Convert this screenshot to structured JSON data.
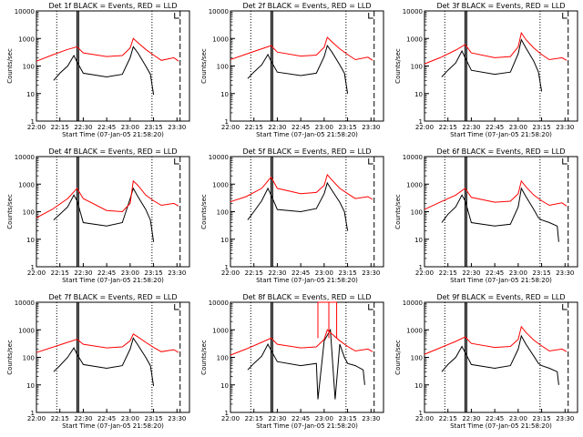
{
  "chart_data": [
    {
      "type": "line",
      "title": "Det 1f BLACK = Events, RED = LLD",
      "xlabel": "Start Time (07-Jan-05 21:58:20)",
      "ylabel": "Counts/sec",
      "yscale": "log",
      "ylim": [
        1,
        10000
      ],
      "y_ticks": [
        "1",
        "10",
        "100",
        "1000",
        "10000"
      ],
      "x_ticks": [
        "22:00",
        "22:15",
        "22:30",
        "22:45",
        "23:00",
        "23:15",
        "23:30"
      ],
      "colors": {
        "events": "#000000",
        "lld": "#ff0000"
      },
      "markers": {
        "dotted": [
          "22:13",
          "23:14"
        ],
        "solid": [
          "22:26",
          "22:27"
        ],
        "dashed": [
          "23:32"
        ]
      },
      "spike": false,
      "series": [
        {
          "name": "Events",
          "x": [
            "22:11",
            "22:15",
            "22:20",
            "22:24",
            "22:26",
            "22:30",
            "22:45",
            "22:55",
            "23:00",
            "23:02",
            "23:05",
            "23:10",
            "23:13",
            "23:15"
          ],
          "values": [
            30,
            55,
            100,
            240,
            140,
            55,
            40,
            50,
            200,
            500,
            300,
            100,
            50,
            9
          ]
        },
        {
          "name": "LLD",
          "x": [
            "22:00",
            "22:10",
            "22:20",
            "22:26",
            "22:30",
            "22:45",
            "22:55",
            "23:00",
            "23:02",
            "23:05",
            "23:10",
            "23:15",
            "23:20",
            "23:28",
            "23:31"
          ],
          "values": [
            150,
            250,
            400,
            500,
            300,
            220,
            240,
            450,
            1000,
            700,
            400,
            250,
            160,
            200,
            150
          ]
        }
      ]
    },
    {
      "type": "line",
      "title": "Det 2f BLACK = Events, RED = LLD",
      "xlabel": "Start Time (07-Jan-05 21:58:20)",
      "ylabel": "Counts/sec",
      "yscale": "log",
      "ylim": [
        1,
        10000
      ],
      "y_ticks": [
        "1",
        "10",
        "100",
        "1000",
        "10000"
      ],
      "x_ticks": [
        "22:00",
        "22:15",
        "22:30",
        "22:45",
        "23:00",
        "23:15",
        "23:30"
      ],
      "colors": {
        "events": "#000000",
        "lld": "#ff0000"
      },
      "markers": {
        "dotted": [
          "22:13",
          "23:14"
        ],
        "solid": [
          "22:26",
          "22:27"
        ],
        "dashed": [
          "23:32"
        ]
      },
      "spike": false,
      "series": [
        {
          "name": "Events",
          "x": [
            "22:11",
            "22:15",
            "22:20",
            "22:24",
            "22:26",
            "22:30",
            "22:45",
            "22:55",
            "23:00",
            "23:02",
            "23:05",
            "23:10",
            "23:13",
            "23:15"
          ],
          "values": [
            35,
            60,
            110,
            260,
            150,
            60,
            45,
            55,
            220,
            550,
            320,
            110,
            55,
            10
          ]
        },
        {
          "name": "LLD",
          "x": [
            "22:00",
            "22:10",
            "22:20",
            "22:26",
            "22:30",
            "22:45",
            "22:55",
            "23:00",
            "23:02",
            "23:05",
            "23:10",
            "23:15",
            "23:20",
            "23:28",
            "23:31"
          ],
          "values": [
            170,
            270,
            420,
            550,
            320,
            230,
            250,
            480,
            1100,
            750,
            420,
            260,
            170,
            210,
            160
          ]
        }
      ]
    },
    {
      "type": "line",
      "title": "Det 3f BLACK = Events, RED = LLD",
      "xlabel": "Start Time (07-Jan-05 21:58:20)",
      "ylabel": "Counts/sec",
      "yscale": "log",
      "ylim": [
        1,
        10000
      ],
      "y_ticks": [
        "1",
        "10",
        "100",
        "1000",
        "10000"
      ],
      "x_ticks": [
        "22:00",
        "22:15",
        "22:30",
        "22:45",
        "23:00",
        "23:15",
        "23:30"
      ],
      "colors": {
        "events": "#000000",
        "lld": "#ff0000"
      },
      "markers": {
        "dotted": [
          "22:13",
          "23:14"
        ],
        "solid": [
          "22:26",
          "22:27"
        ],
        "dashed": [
          "23:32"
        ]
      },
      "spike": false,
      "series": [
        {
          "name": "Events",
          "x": [
            "22:11",
            "22:15",
            "22:20",
            "22:24",
            "22:26",
            "22:30",
            "22:45",
            "22:55",
            "23:00",
            "23:02",
            "23:05",
            "23:10",
            "23:13",
            "23:15"
          ],
          "values": [
            40,
            70,
            130,
            350,
            200,
            70,
            50,
            60,
            280,
            900,
            450,
            150,
            60,
            12
          ]
        },
        {
          "name": "LLD",
          "x": [
            "22:00",
            "22:10",
            "22:20",
            "22:26",
            "22:30",
            "22:45",
            "22:55",
            "23:00",
            "23:02",
            "23:05",
            "23:10",
            "23:15",
            "23:20",
            "23:28",
            "23:31"
          ],
          "values": [
            120,
            200,
            380,
            600,
            300,
            200,
            220,
            500,
            1600,
            900,
            450,
            260,
            170,
            200,
            160
          ]
        }
      ]
    },
    {
      "type": "line",
      "title": "Det 4f BLACK = Events, RED = LLD",
      "xlabel": "Start Time (07-Jan-05 21:58:20)",
      "ylabel": "Counts/sec",
      "yscale": "log",
      "ylim": [
        1,
        10000
      ],
      "y_ticks": [
        "1",
        "10",
        "100",
        "1000",
        "10000"
      ],
      "x_ticks": [
        "22:00",
        "22:15",
        "22:30",
        "22:45",
        "23:00",
        "23:15",
        "23:30"
      ],
      "colors": {
        "events": "#000000",
        "lld": "#ff0000"
      },
      "markers": {
        "dotted": [
          "22:13",
          "23:14"
        ],
        "solid": [
          "22:26",
          "22:27"
        ],
        "dashed": [
          "23:32"
        ]
      },
      "spike": false,
      "series": [
        {
          "name": "Events",
          "x": [
            "22:11",
            "22:15",
            "22:20",
            "22:24",
            "22:26",
            "22:30",
            "22:45",
            "22:55",
            "23:00",
            "23:02",
            "23:05",
            "23:10",
            "23:13",
            "23:15"
          ],
          "values": [
            50,
            80,
            150,
            400,
            250,
            40,
            30,
            40,
            300,
            700,
            350,
            120,
            50,
            8
          ]
        },
        {
          "name": "LLD",
          "x": [
            "22:00",
            "22:10",
            "22:20",
            "22:26",
            "22:30",
            "22:45",
            "22:55",
            "23:00",
            "23:02",
            "23:05",
            "23:10",
            "23:15",
            "23:20",
            "23:28",
            "23:31"
          ],
          "values": [
            60,
            120,
            300,
            700,
            300,
            110,
            100,
            200,
            1300,
            900,
            400,
            250,
            170,
            200,
            160
          ]
        }
      ]
    },
    {
      "type": "line",
      "title": "Det 5f BLACK = Events, RED = LLD",
      "xlabel": "Start Time (07-Jan-05 21:58:20)",
      "ylabel": "Counts/sec",
      "yscale": "log",
      "ylim": [
        1,
        10000
      ],
      "y_ticks": [
        "1",
        "10",
        "100",
        "1000",
        "10000"
      ],
      "x_ticks": [
        "22:00",
        "22:15",
        "22:30",
        "22:45",
        "23:00",
        "23:15",
        "23:30"
      ],
      "colors": {
        "events": "#000000",
        "lld": "#ff0000"
      },
      "markers": {
        "dotted": [
          "22:13",
          "23:14"
        ],
        "solid": [
          "22:26",
          "22:27"
        ],
        "dashed": [
          "23:32"
        ]
      },
      "spike": false,
      "series": [
        {
          "name": "Events",
          "x": [
            "22:11",
            "22:15",
            "22:20",
            "22:24",
            "22:26",
            "22:30",
            "22:45",
            "22:55",
            "23:00",
            "23:02",
            "23:05",
            "23:10",
            "23:13",
            "23:15"
          ],
          "values": [
            50,
            100,
            250,
            700,
            400,
            120,
            100,
            130,
            450,
            1100,
            600,
            220,
            100,
            20
          ]
        },
        {
          "name": "LLD",
          "x": [
            "22:00",
            "22:10",
            "22:20",
            "22:26",
            "22:30",
            "22:45",
            "22:55",
            "23:00",
            "23:02",
            "23:05",
            "23:10",
            "23:15",
            "23:20",
            "23:28",
            "23:31"
          ],
          "values": [
            230,
            350,
            700,
            1800,
            700,
            450,
            500,
            900,
            2200,
            1400,
            700,
            450,
            300,
            350,
            280
          ]
        }
      ]
    },
    {
      "type": "line",
      "title": "Det 6f BLACK = Events, RED = LLD",
      "xlabel": "Start Time (07-Jan-05 21:58:20)",
      "ylabel": "Counts/sec",
      "yscale": "log",
      "ylim": [
        1,
        10000
      ],
      "y_ticks": [
        "1",
        "10",
        "100",
        "1000",
        "10000"
      ],
      "x_ticks": [
        "22:00",
        "22:15",
        "22:30",
        "22:45",
        "23:00",
        "23:15",
        "23:30"
      ],
      "colors": {
        "events": "#000000",
        "lld": "#ff0000"
      },
      "markers": {
        "dotted": [
          "22:13",
          "23:14"
        ],
        "solid": [
          "22:26",
          "22:27"
        ],
        "dashed": [
          "23:32"
        ]
      },
      "spike": false,
      "series": [
        {
          "name": "Events",
          "x": [
            "22:11",
            "22:15",
            "22:20",
            "22:24",
            "22:26",
            "22:30",
            "22:45",
            "22:55",
            "23:00",
            "23:02",
            "23:05",
            "23:10",
            "23:13",
            "23:15",
            "23:20",
            "23:25",
            "23:26"
          ],
          "values": [
            40,
            80,
            150,
            400,
            250,
            40,
            30,
            35,
            150,
            700,
            350,
            120,
            60,
            50,
            40,
            30,
            8
          ]
        },
        {
          "name": "LLD",
          "x": [
            "22:00",
            "22:10",
            "22:20",
            "22:26",
            "22:30",
            "22:45",
            "22:55",
            "23:00",
            "23:02",
            "23:05",
            "23:10",
            "23:15",
            "23:20",
            "23:28",
            "23:31"
          ],
          "values": [
            120,
            220,
            400,
            700,
            330,
            220,
            240,
            450,
            1300,
            800,
            400,
            250,
            170,
            210,
            160
          ]
        }
      ]
    },
    {
      "type": "line",
      "title": "Det 7f BLACK = Events, RED = LLD",
      "xlabel": "Start Time (07-Jan-05 21:58:20)",
      "ylabel": "Counts/sec",
      "yscale": "log",
      "ylim": [
        1,
        10000
      ],
      "y_ticks": [
        "1",
        "10",
        "100",
        "1000",
        "10000"
      ],
      "x_ticks": [
        "22:00",
        "22:15",
        "22:30",
        "22:45",
        "23:00",
        "23:15",
        "23:30"
      ],
      "colors": {
        "events": "#000000",
        "lld": "#ff0000"
      },
      "markers": {
        "dotted": [
          "22:13",
          "23:14"
        ],
        "solid": [
          "22:26",
          "22:27"
        ],
        "dashed": [
          "23:32"
        ]
      },
      "spike": false,
      "series": [
        {
          "name": "Events",
          "x": [
            "22:11",
            "22:15",
            "22:20",
            "22:24",
            "22:26",
            "22:30",
            "22:45",
            "22:55",
            "23:00",
            "23:02",
            "23:05",
            "23:10",
            "23:13",
            "23:15"
          ],
          "values": [
            30,
            50,
            100,
            220,
            130,
            55,
            40,
            50,
            200,
            500,
            280,
            100,
            50,
            9
          ]
        },
        {
          "name": "LLD",
          "x": [
            "22:00",
            "22:10",
            "22:20",
            "22:26",
            "22:30",
            "22:45",
            "22:55",
            "23:00",
            "23:02",
            "23:05",
            "23:10",
            "23:15",
            "23:20",
            "23:28",
            "23:31"
          ],
          "values": [
            150,
            230,
            350,
            450,
            300,
            220,
            240,
            400,
            700,
            550,
            350,
            230,
            160,
            190,
            150
          ]
        }
      ]
    },
    {
      "type": "line",
      "title": "Det 8f BLACK = Events, RED = LLD",
      "xlabel": "Start Time (07-Jan-05 21:58:20)",
      "ylabel": "Counts/sec",
      "yscale": "log",
      "ylim": [
        1,
        10000
      ],
      "y_ticks": [
        "1",
        "10",
        "100",
        "1000",
        "10000"
      ],
      "x_ticks": [
        "22:00",
        "22:15",
        "22:30",
        "22:45",
        "23:00",
        "23:15",
        "23:30"
      ],
      "colors": {
        "events": "#000000",
        "lld": "#ff0000"
      },
      "markers": {
        "dotted": [
          "22:13",
          "23:14"
        ],
        "solid": [
          "22:26",
          "22:27"
        ],
        "dashed": [
          "23:32"
        ]
      },
      "spike": true,
      "series": [
        {
          "name": "Events",
          "x": [
            "22:11",
            "22:15",
            "22:20",
            "22:24",
            "22:26",
            "22:30",
            "22:45",
            "22:55",
            "22:56",
            "23:00",
            "23:04",
            "23:07",
            "23:10",
            "23:13",
            "23:15",
            "23:20",
            "23:25",
            "23:26"
          ],
          "values": [
            35,
            60,
            110,
            300,
            180,
            70,
            50,
            60,
            3,
            400,
            1000,
            3,
            300,
            100,
            60,
            50,
            35,
            10
          ]
        },
        {
          "name": "LLD",
          "x": [
            "22:00",
            "22:10",
            "22:20",
            "22:26",
            "22:30",
            "22:45",
            "22:55",
            "23:00",
            "23:02",
            "23:05",
            "23:10",
            "23:15",
            "23:20",
            "23:28",
            "23:31"
          ],
          "values": [
            120,
            200,
            350,
            500,
            300,
            220,
            240,
            450,
            1000,
            700,
            400,
            250,
            170,
            200,
            160
          ]
        }
      ]
    },
    {
      "type": "line",
      "title": "Det 9f BLACK = Events, RED = LLD",
      "xlabel": "Start Time (07-Jan-05 21:58:20)",
      "ylabel": "Counts/sec",
      "yscale": "log",
      "ylim": [
        1,
        10000
      ],
      "y_ticks": [
        "1",
        "10",
        "100",
        "1000",
        "10000"
      ],
      "x_ticks": [
        "22:00",
        "22:15",
        "22:30",
        "22:45",
        "23:00",
        "23:15",
        "23:30"
      ],
      "colors": {
        "events": "#000000",
        "lld": "#ff0000"
      },
      "markers": {
        "dotted": [
          "22:13",
          "23:14"
        ],
        "solid": [
          "22:26",
          "22:27"
        ],
        "dashed": [
          "23:32"
        ]
      },
      "spike": false,
      "series": [
        {
          "name": "Events",
          "x": [
            "22:11",
            "22:15",
            "22:20",
            "22:24",
            "22:26",
            "22:30",
            "22:45",
            "22:55",
            "23:00",
            "23:02",
            "23:05",
            "23:10",
            "23:13",
            "23:15",
            "23:20",
            "23:25",
            "23:26"
          ],
          "values": [
            30,
            55,
            100,
            250,
            150,
            55,
            40,
            50,
            200,
            600,
            300,
            110,
            60,
            50,
            40,
            30,
            10
          ]
        },
        {
          "name": "LLD",
          "x": [
            "22:00",
            "22:10",
            "22:20",
            "22:26",
            "22:30",
            "22:45",
            "22:55",
            "23:00",
            "23:02",
            "23:05",
            "23:10",
            "23:15",
            "23:20",
            "23:28",
            "23:31"
          ],
          "values": [
            130,
            220,
            380,
            550,
            320,
            230,
            250,
            450,
            1300,
            800,
            420,
            260,
            170,
            200,
            160
          ]
        }
      ]
    }
  ]
}
